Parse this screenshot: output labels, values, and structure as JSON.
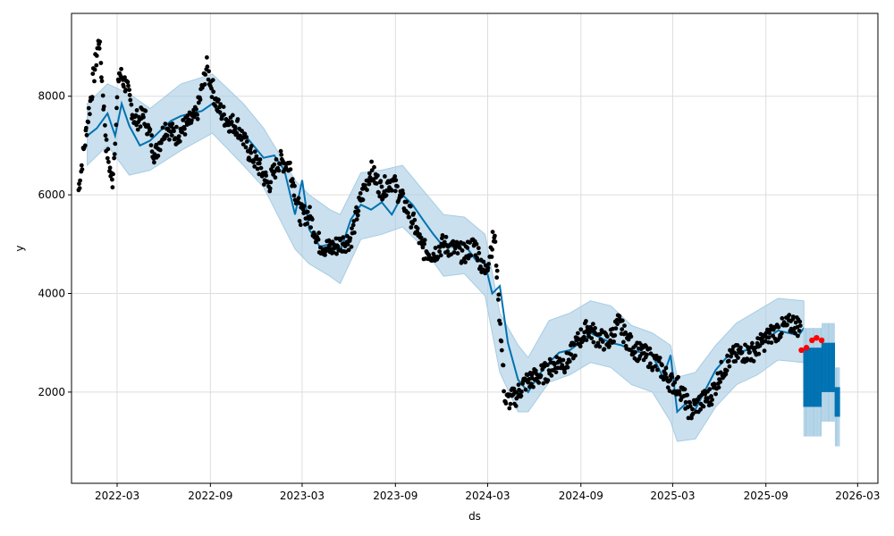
{
  "chart_data": {
    "type": "line",
    "title": "",
    "xlabel": "ds",
    "ylabel": "y",
    "grid": true,
    "xlim": [
      "2021-12-01",
      "2026-04-10"
    ],
    "ylim": [
      150,
      9680
    ],
    "x_ticks": [
      "2022-03",
      "2022-09",
      "2023-03",
      "2023-09",
      "2024-03",
      "2024-09",
      "2025-03",
      "2025-09",
      "2026-03"
    ],
    "y_ticks": [
      2000,
      4000,
      6000,
      8000
    ],
    "colors": {
      "observed": "#000000",
      "forecast": "#0072B2",
      "interval": "#A6CCE3",
      "highlight": "#FF0000",
      "grid": "#dddddd"
    },
    "series": [
      {
        "role": "forecast",
        "x": [
          "2022-01-01",
          "2022-01-20",
          "2022-02-10",
          "2022-02-25",
          "2022-03-10",
          "2022-03-25",
          "2022-04-15",
          "2022-05-05",
          "2022-05-25",
          "2022-06-15",
          "2022-07-05",
          "2022-07-25",
          "2022-08-15",
          "2022-09-05",
          "2022-09-25",
          "2022-10-15",
          "2022-11-05",
          "2022-11-25",
          "2022-12-15",
          "2023-01-05",
          "2023-01-25",
          "2023-02-15",
          "2023-03-01",
          "2023-03-15",
          "2023-04-05",
          "2023-04-25",
          "2023-05-15",
          "2023-06-05",
          "2023-06-25",
          "2023-07-15",
          "2023-08-05",
          "2023-08-25",
          "2023-09-15",
          "2023-10-05",
          "2023-10-25",
          "2023-11-15",
          "2023-12-05",
          "2023-12-25",
          "2024-01-15",
          "2024-02-05",
          "2024-02-25",
          "2024-03-10",
          "2024-03-25",
          "2024-04-10",
          "2024-04-30",
          "2024-05-20",
          "2024-06-10",
          "2024-06-30",
          "2024-07-20",
          "2024-08-10",
          "2024-08-30",
          "2024-09-20",
          "2024-10-10",
          "2024-10-30",
          "2024-11-20",
          "2024-12-10",
          "2024-12-30",
          "2025-01-20",
          "2025-02-10",
          "2025-02-25",
          "2025-03-10",
          "2025-03-25",
          "2025-04-15",
          "2025-05-05",
          "2025-05-25",
          "2025-06-15",
          "2025-07-05",
          "2025-07-25",
          "2025-08-15",
          "2025-09-05",
          "2025-09-25",
          "2025-10-15",
          "2025-11-05",
          "2025-11-15"
        ],
        "values": [
          7200,
          7350,
          7650,
          7200,
          7850,
          7400,
          7000,
          7100,
          7300,
          7500,
          7600,
          7650,
          7700,
          7850,
          7550,
          7400,
          7250,
          7000,
          6750,
          6800,
          6500,
          5600,
          6300,
          5300,
          4950,
          5000,
          4850,
          5500,
          5800,
          5700,
          5850,
          5600,
          6000,
          5800,
          5500,
          5200,
          4950,
          4950,
          5000,
          4700,
          4600,
          4000,
          4150,
          3000,
          2250,
          2000,
          2350,
          2600,
          2800,
          2850,
          3000,
          3200,
          3100,
          3000,
          2950,
          2850,
          2800,
          2750,
          2300,
          2750,
          1600,
          1750,
          1650,
          2050,
          2450,
          2700,
          2800,
          2850,
          2950,
          3100,
          3250,
          3200,
          3150,
          3300
        ]
      },
      {
        "role": "forecast-periodic",
        "x_start": "2025-11-15",
        "x_end": "2026-01-25",
        "band_low": [
          1700,
          2000,
          1500
        ],
        "band_high": [
          2900,
          3000,
          2100
        ]
      }
    ],
    "interval_band": {
      "x": [
        "2022-01-01",
        "2022-02-10",
        "2022-03-25",
        "2022-05-05",
        "2022-07-05",
        "2022-09-05",
        "2022-11-05",
        "2022-12-15",
        "2023-02-15",
        "2023-03-15",
        "2023-04-25",
        "2023-05-15",
        "2023-06-25",
        "2023-08-05",
        "2023-09-15",
        "2023-10-25",
        "2023-12-05",
        "2024-01-15",
        "2024-02-25",
        "2024-03-25",
        "2024-04-30",
        "2024-05-20",
        "2024-06-30",
        "2024-08-10",
        "2024-09-20",
        "2024-10-30",
        "2024-12-10",
        "2025-01-20",
        "2025-02-25",
        "2025-03-10",
        "2025-04-15",
        "2025-05-25",
        "2025-07-05",
        "2025-08-15",
        "2025-09-25",
        "2025-11-15"
      ],
      "lower": [
        6600,
        7000,
        6400,
        6500,
        6900,
        7250,
        6600,
        6150,
        4900,
        4600,
        4350,
        4200,
        5100,
        5200,
        5350,
        4950,
        4350,
        4400,
        3950,
        2400,
        1600,
        1600,
        2200,
        2350,
        2600,
        2500,
        2150,
        2000,
        1400,
        1000,
        1050,
        1700,
        2150,
        2350,
        2650,
        2600
      ],
      "upper": [
        7850,
        8250,
        8050,
        7750,
        8250,
        8450,
        7850,
        7350,
        6300,
        6000,
        5700,
        5600,
        6450,
        6500,
        6600,
        6100,
        5600,
        5550,
        5200,
        3600,
        2950,
        2700,
        3450,
        3600,
        3850,
        3750,
        3350,
        3200,
        2950,
        2300,
        2400,
        2950,
        3400,
        3650,
        3900,
        3850
      ]
    },
    "observed_sample_x": [
      "2021-12-15",
      "2022-01-05",
      "2022-01-25",
      "2022-02-08",
      "2022-02-20",
      "2022-03-05",
      "2022-03-20",
      "2022-04-05",
      "2022-04-25",
      "2022-05-15",
      "2022-06-05",
      "2022-06-25",
      "2022-07-15",
      "2022-08-05",
      "2022-08-25",
      "2022-09-15",
      "2022-10-05",
      "2022-10-25",
      "2022-11-15",
      "2022-12-05",
      "2022-12-25",
      "2023-01-15",
      "2023-02-05",
      "2023-02-25",
      "2023-03-15",
      "2023-04-05",
      "2023-04-25",
      "2023-05-15",
      "2023-06-05",
      "2023-06-25",
      "2023-07-15",
      "2023-08-05",
      "2023-08-25",
      "2023-09-15",
      "2023-10-05",
      "2023-10-25",
      "2023-11-15",
      "2023-12-05",
      "2023-12-25",
      "2024-01-15",
      "2024-02-05",
      "2024-02-25",
      "2024-03-15",
      "2024-04-05",
      "2024-04-25",
      "2024-05-15",
      "2024-06-05",
      "2024-06-25",
      "2024-07-15",
      "2024-08-05",
      "2024-08-25",
      "2024-09-15",
      "2024-10-05",
      "2024-10-25",
      "2024-11-15",
      "2024-12-05",
      "2024-12-25",
      "2025-01-15",
      "2025-02-05",
      "2025-02-25",
      "2025-03-15",
      "2025-04-05",
      "2025-04-25",
      "2025-05-15",
      "2025-06-05",
      "2025-06-25",
      "2025-07-15",
      "2025-08-05",
      "2025-08-25",
      "2025-09-15",
      "2025-10-05",
      "2025-10-25",
      "2025-11-10"
    ],
    "observed_sample_y": [
      6100,
      7700,
      9200,
      7000,
      6200,
      8500,
      8200,
      7500,
      7600,
      6800,
      7400,
      7200,
      7400,
      7600,
      8600,
      7800,
      7500,
      7400,
      6900,
      6600,
      6200,
      6700,
      6600,
      5600,
      5600,
      5000,
      4900,
      5000,
      5100,
      5900,
      6500,
      6100,
      6300,
      5900,
      5500,
      4900,
      4800,
      5000,
      4900,
      4800,
      5000,
      4400,
      5200,
      1800,
      1900,
      2200,
      2300,
      2400,
      2600,
      2600,
      3000,
      3300,
      3100,
      3000,
      3400,
      3000,
      2800,
      2700,
      2500,
      2200,
      2100,
      1600,
      1800,
      1900,
      2400,
      2700,
      2800,
      2800,
      3000,
      3200,
      3300,
      3400,
      3300
    ],
    "highlight_x": [
      "2025-11-10",
      "2025-11-20",
      "2025-12-01",
      "2025-12-10",
      "2025-12-20"
    ],
    "highlight_y": [
      2850,
      2900,
      3050,
      3100,
      3050
    ]
  }
}
